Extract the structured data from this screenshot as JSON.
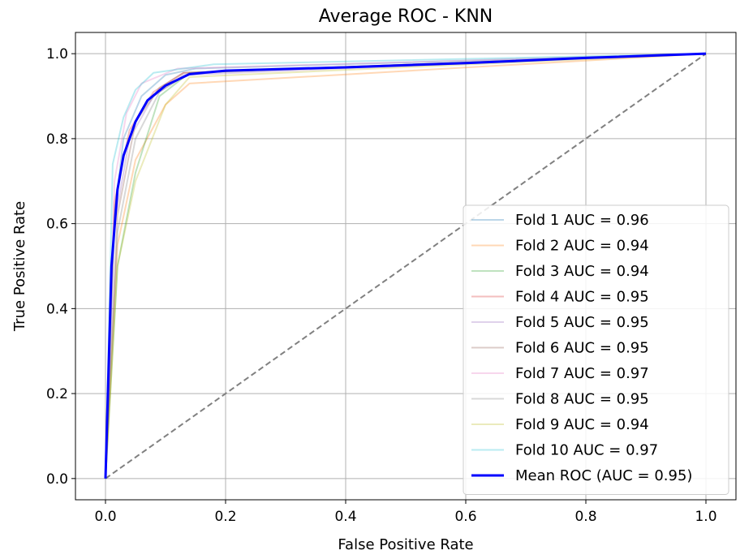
{
  "chart_data": {
    "type": "line",
    "title": "Average ROC - KNN",
    "xlabel": "False Positive Rate",
    "ylabel": "True Positive Rate",
    "xlim": [
      -0.05,
      1.05
    ],
    "ylim": [
      -0.05,
      1.05
    ],
    "xticks": [
      0.0,
      0.2,
      0.4,
      0.6,
      0.8,
      1.0
    ],
    "yticks": [
      0.0,
      0.2,
      0.4,
      0.6,
      0.8,
      1.0
    ],
    "xtick_labels": [
      "0.0",
      "0.2",
      "0.4",
      "0.6",
      "0.8",
      "1.0"
    ],
    "ytick_labels": [
      "0.0",
      "0.2",
      "0.4",
      "0.6",
      "0.8",
      "1.0"
    ],
    "grid": true,
    "legend_position": "lower-right",
    "series": [
      {
        "name": "Fold 1 AUC = 0.96",
        "color": "#1f77b4",
        "opacity": 0.3,
        "x": [
          0,
          0.015,
          0.03,
          0.06,
          0.1,
          0.15,
          1.0
        ],
        "y": [
          0,
          0.62,
          0.8,
          0.9,
          0.95,
          0.965,
          1.0
        ]
      },
      {
        "name": "Fold 2 AUC = 0.94",
        "color": "#ff7f0e",
        "opacity": 0.3,
        "x": [
          0,
          0.02,
          0.05,
          0.1,
          0.14,
          1.0
        ],
        "y": [
          0,
          0.55,
          0.75,
          0.88,
          0.93,
          1.0
        ]
      },
      {
        "name": "Fold 3 AUC = 0.94",
        "color": "#2ca02c",
        "opacity": 0.3,
        "x": [
          0,
          0.02,
          0.05,
          0.09,
          0.14,
          1.0
        ],
        "y": [
          0,
          0.5,
          0.72,
          0.9,
          0.955,
          1.0
        ]
      },
      {
        "name": "Fold 4 AUC = 0.95",
        "color": "#d62728",
        "opacity": 0.3,
        "x": [
          0,
          0.015,
          0.04,
          0.08,
          0.13,
          1.0
        ],
        "y": [
          0,
          0.65,
          0.82,
          0.91,
          0.955,
          1.0
        ]
      },
      {
        "name": "Fold 5 AUC = 0.95",
        "color": "#9467bd",
        "opacity": 0.3,
        "x": [
          0,
          0.015,
          0.04,
          0.08,
          0.13,
          1.0
        ],
        "y": [
          0,
          0.6,
          0.8,
          0.9,
          0.95,
          1.0
        ]
      },
      {
        "name": "Fold 6 AUC = 0.95",
        "color": "#8c564b",
        "opacity": 0.3,
        "x": [
          0,
          0.02,
          0.05,
          0.09,
          0.13,
          1.0
        ],
        "y": [
          0,
          0.62,
          0.84,
          0.92,
          0.955,
          1.0
        ]
      },
      {
        "name": "Fold 7 AUC = 0.97",
        "color": "#e377c2",
        "opacity": 0.3,
        "x": [
          0,
          0.015,
          0.035,
          0.06,
          0.12,
          1.0
        ],
        "y": [
          0,
          0.7,
          0.86,
          0.93,
          0.965,
          1.0
        ]
      },
      {
        "name": "Fold 8 AUC = 0.95",
        "color": "#7f7f7f",
        "opacity": 0.3,
        "x": [
          0,
          0.02,
          0.05,
          0.09,
          0.14,
          1.0
        ],
        "y": [
          0,
          0.58,
          0.8,
          0.91,
          0.955,
          1.0
        ]
      },
      {
        "name": "Fold 9 AUC = 0.94",
        "color": "#bcbd22",
        "opacity": 0.3,
        "x": [
          0,
          0.02,
          0.05,
          0.1,
          0.14,
          1.0
        ],
        "y": [
          0,
          0.5,
          0.7,
          0.88,
          0.945,
          1.0
        ]
      },
      {
        "name": "Fold 10 AUC = 0.97",
        "color": "#17becf",
        "opacity": 0.3,
        "x": [
          0,
          0.012,
          0.03,
          0.05,
          0.08,
          0.18,
          1.0
        ],
        "y": [
          0,
          0.74,
          0.85,
          0.915,
          0.955,
          0.975,
          1.0
        ]
      },
      {
        "name": "Mean ROC (AUC = 0.95)",
        "color": "#0000ff",
        "opacity": 1.0,
        "x": [
          0,
          0.01,
          0.02,
          0.03,
          0.05,
          0.07,
          0.1,
          0.14,
          0.2,
          0.4,
          0.6,
          0.8,
          1.0
        ],
        "y": [
          0,
          0.5,
          0.68,
          0.76,
          0.84,
          0.89,
          0.925,
          0.952,
          0.96,
          0.968,
          0.978,
          0.99,
          1.0
        ]
      }
    ],
    "reference_line": {
      "x": [
        0,
        1
      ],
      "y": [
        0,
        1
      ],
      "color": "#808080",
      "style": "dashed"
    }
  }
}
